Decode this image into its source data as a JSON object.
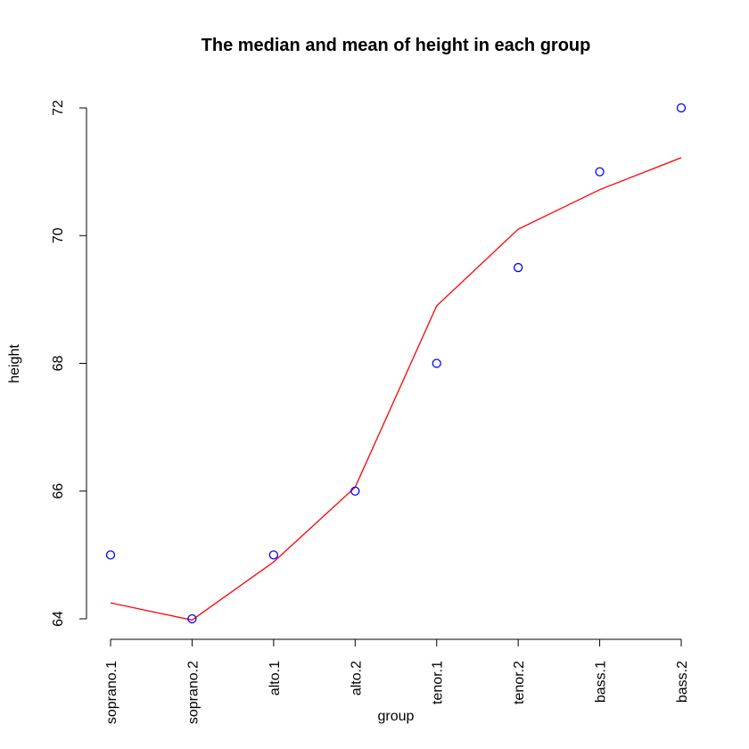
{
  "chart_data": {
    "type": "line",
    "title": "The median and mean of height in each group",
    "xlabel": "group",
    "ylabel": "height",
    "categories": [
      "soprano.1",
      "soprano.2",
      "alto.1",
      "alto.2",
      "tenor.1",
      "tenor.2",
      "bass.1",
      "bass.2"
    ],
    "ylim": [
      63.7,
      72.3
    ],
    "yticks": [
      64,
      66,
      68,
      70,
      72
    ],
    "grid": false,
    "series": [
      {
        "marker": "circle",
        "color": "#0000ff",
        "values": [
          65,
          64,
          65,
          66,
          68,
          69.5,
          71,
          72
        ]
      },
      {
        "marker": "line",
        "color": "#ff0000",
        "values": [
          64.25,
          63.98,
          64.89,
          66.06,
          68.9,
          70.1,
          70.72,
          71.22
        ]
      }
    ]
  }
}
